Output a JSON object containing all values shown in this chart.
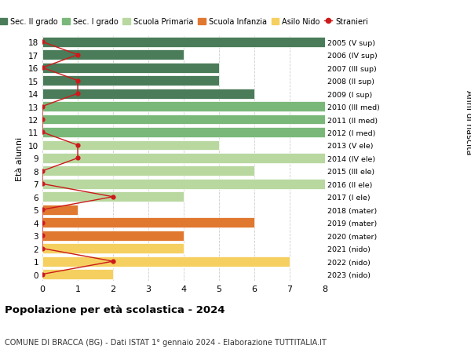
{
  "ages": [
    18,
    17,
    16,
    15,
    14,
    13,
    12,
    11,
    10,
    9,
    8,
    7,
    6,
    5,
    4,
    3,
    2,
    1,
    0
  ],
  "year_labels": [
    "2005 (V sup)",
    "2006 (IV sup)",
    "2007 (III sup)",
    "2008 (II sup)",
    "2009 (I sup)",
    "2010 (III med)",
    "2011 (II med)",
    "2012 (I med)",
    "2013 (V ele)",
    "2014 (IV ele)",
    "2015 (III ele)",
    "2016 (II ele)",
    "2017 (I ele)",
    "2018 (mater)",
    "2019 (mater)",
    "2020 (mater)",
    "2021 (nido)",
    "2022 (nido)",
    "2023 (nido)"
  ],
  "bar_values": [
    8,
    4,
    5,
    5,
    6,
    8,
    8,
    8,
    5,
    8,
    6,
    8,
    4,
    1,
    6,
    4,
    4,
    7,
    2
  ],
  "bar_colors": [
    "#4a7c59",
    "#4a7c59",
    "#4a7c59",
    "#4a7c59",
    "#4a7c59",
    "#7ab87a",
    "#7ab87a",
    "#7ab87a",
    "#b8d8a0",
    "#b8d8a0",
    "#b8d8a0",
    "#b8d8a0",
    "#b8d8a0",
    "#e07830",
    "#e07830",
    "#e07830",
    "#f5d060",
    "#f5d060",
    "#f5d060"
  ],
  "stranieri_values": [
    0,
    1,
    0,
    1,
    1,
    0,
    0,
    0,
    1,
    1,
    0,
    0,
    2,
    0,
    0,
    0,
    0,
    2,
    0
  ],
  "color_sec2": "#4a7c59",
  "color_sec1": "#7ab87a",
  "color_primaria": "#b8d8a0",
  "color_infanzia": "#e07830",
  "color_nido": "#f5d060",
  "color_stranieri": "#cc1a1a",
  "title": "Popolazione per età scolastica - 2024",
  "subtitle": "COMUNE DI BRACCA (BG) - Dati ISTAT 1° gennaio 2024 - Elaborazione TUTTITALIA.IT",
  "ylabel_left": "Età alunni",
  "ylabel_right": "Anni di nascita",
  "xlim": [
    0,
    8
  ],
  "bg_color": "#ffffff",
  "grid_color": "#cccccc",
  "legend_labels": [
    "Sec. II grado",
    "Sec. I grado",
    "Scuola Primaria",
    "Scuola Infanzia",
    "Asilo Nido",
    "Stranieri"
  ]
}
